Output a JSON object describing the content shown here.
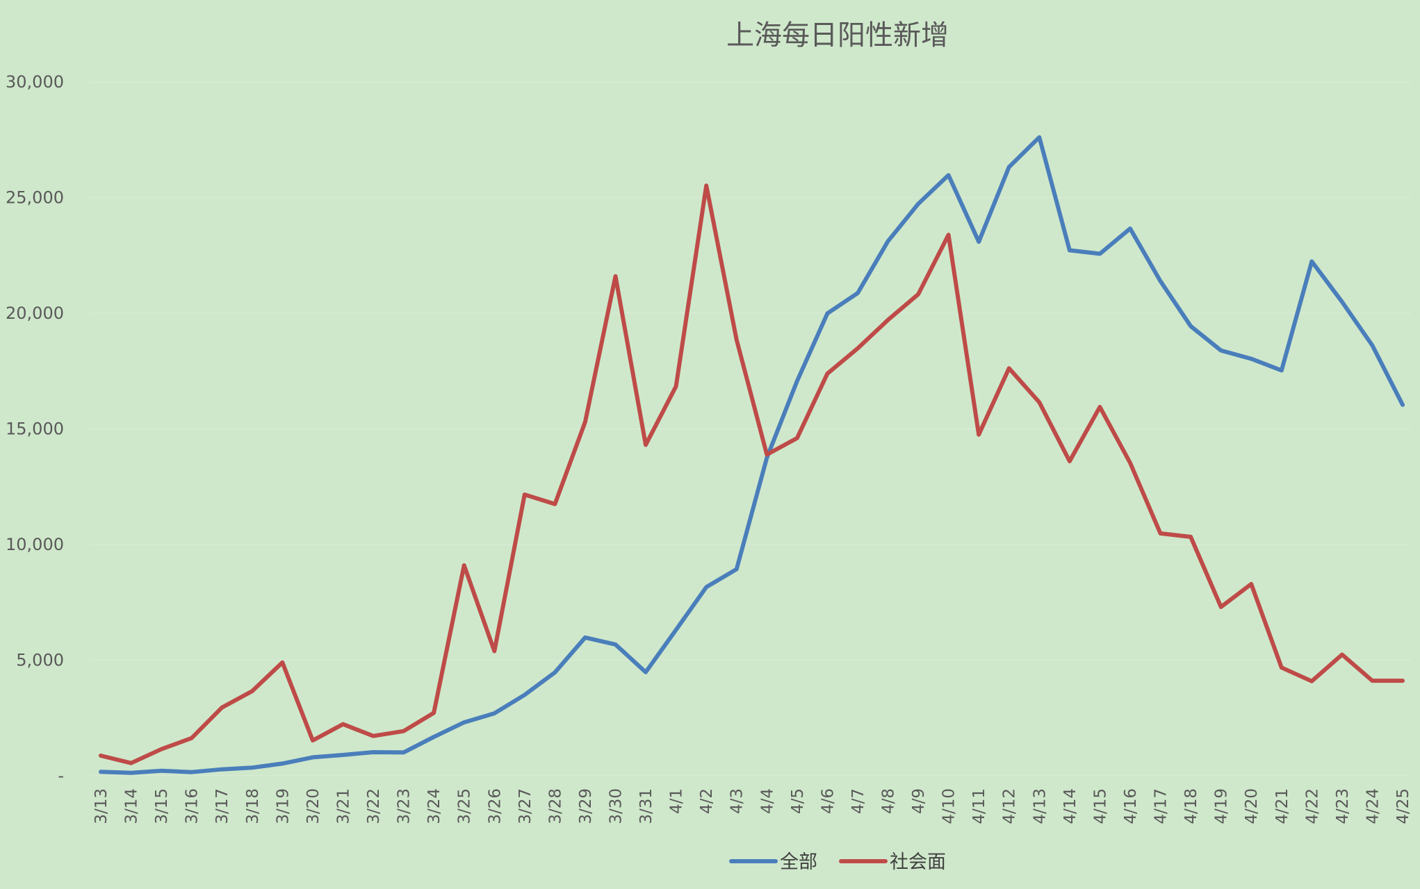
{
  "chart_data": {
    "type": "line",
    "title": "上海每日阳性新增",
    "xlabel": "",
    "ylabel": "",
    "ylim": [
      0,
      30000
    ],
    "yticks": [
      0,
      5000,
      10000,
      15000,
      20000,
      25000,
      30000
    ],
    "ytick_labels": [
      "-",
      "5,000",
      "10,000",
      "15,000",
      "20,000",
      "25,000",
      "30,000"
    ],
    "grid": true,
    "legend_position": "bottom",
    "categories": [
      "3/13",
      "3/14",
      "3/15",
      "3/16",
      "3/17",
      "3/18",
      "3/19",
      "3/20",
      "3/21",
      "3/22",
      "3/23",
      "3/24",
      "3/25",
      "3/26",
      "3/27",
      "3/28",
      "3/29",
      "3/30",
      "3/31",
      "4/1",
      "4/2",
      "4/3",
      "4/4",
      "4/5",
      "4/6",
      "4/7",
      "4/8",
      "4/9",
      "4/10",
      "4/11",
      "4/12",
      "4/13",
      "4/14",
      "4/15",
      "4/16",
      "4/17",
      "4/18",
      "4/19",
      "4/20",
      "4/21",
      "4/22",
      "4/23",
      "4/24",
      "4/25"
    ],
    "series": [
      {
        "name": "全部",
        "color": "#4a7ebb",
        "values": [
          170,
          130,
          220,
          160,
          280,
          350,
          530,
          800,
          900,
          1020,
          1010,
          1680,
          2310,
          2700,
          3500,
          4470,
          5980,
          5680,
          4480,
          6310,
          8160,
          8930,
          13750,
          17070,
          19990,
          20870,
          23110,
          24730,
          25970,
          23090,
          26320,
          27610,
          22720,
          22570,
          23660,
          21390,
          19440,
          18390,
          18030,
          17530,
          22240,
          20490,
          18610,
          16040
        ]
      },
      {
        "name": "社会面",
        "color": "#be4b48",
        "values": [
          870,
          550,
          1150,
          1630,
          2950,
          3660,
          4900,
          1530,
          2230,
          1720,
          1930,
          2720,
          9100,
          5390,
          12160,
          11750,
          15300,
          21600,
          14310,
          16840,
          25520,
          18860,
          13890,
          14600,
          17390,
          18480,
          19710,
          20820,
          23390,
          14750,
          17620,
          16150,
          13600,
          15950,
          13530,
          10480,
          10330,
          7300,
          8290,
          4680,
          4090,
          5240,
          4110,
          4110
        ]
      }
    ]
  }
}
